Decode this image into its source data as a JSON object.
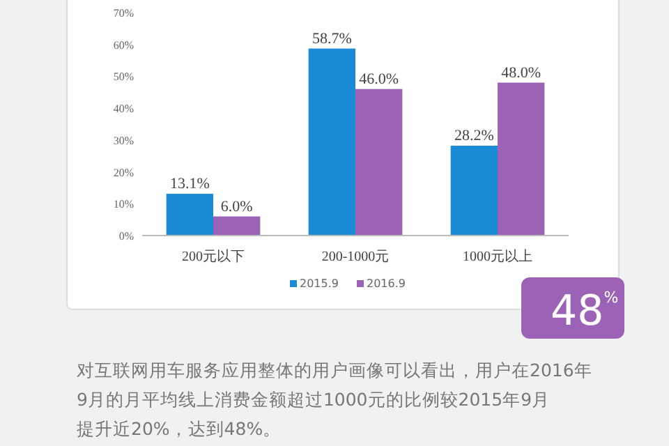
{
  "chart_data": {
    "type": "bar",
    "categories": [
      "200元以下",
      "200-1000元",
      "1000元以上"
    ],
    "series": [
      {
        "name": "2015.9",
        "color": "#1b8bd6",
        "values": [
          13.1,
          58.7,
          28.2
        ]
      },
      {
        "name": "2016.9",
        "color": "#9c62b6",
        "values": [
          6.0,
          46.0,
          48.0
        ]
      }
    ],
    "ylim": [
      0,
      70
    ],
    "yticks": [
      {
        "value": 0,
        "label": "0%"
      },
      {
        "value": 10,
        "label": "10%"
      },
      {
        "value": 20,
        "label": "20%"
      },
      {
        "value": 30,
        "label": "30%"
      },
      {
        "value": 40,
        "label": "40%"
      },
      {
        "value": 50,
        "label": "50%"
      },
      {
        "value": 60,
        "label": "60%"
      },
      {
        "value": 70,
        "label": "70%"
      }
    ],
    "value_labels": [
      [
        "13.1%",
        "58.7%",
        "28.2%"
      ],
      [
        "6.0%",
        "46.0%",
        "48.0%"
      ]
    ],
    "legend": "bottom",
    "grid": false,
    "annotations": [
      "48$^{%}$",
      "对互联网用车服务应用整体的用户画像可以看出，用户在2016年9月的月平均线上消费金额超过1000元的比例较2015年9月提升近20%，达到48%。"
    ]
  }
}
